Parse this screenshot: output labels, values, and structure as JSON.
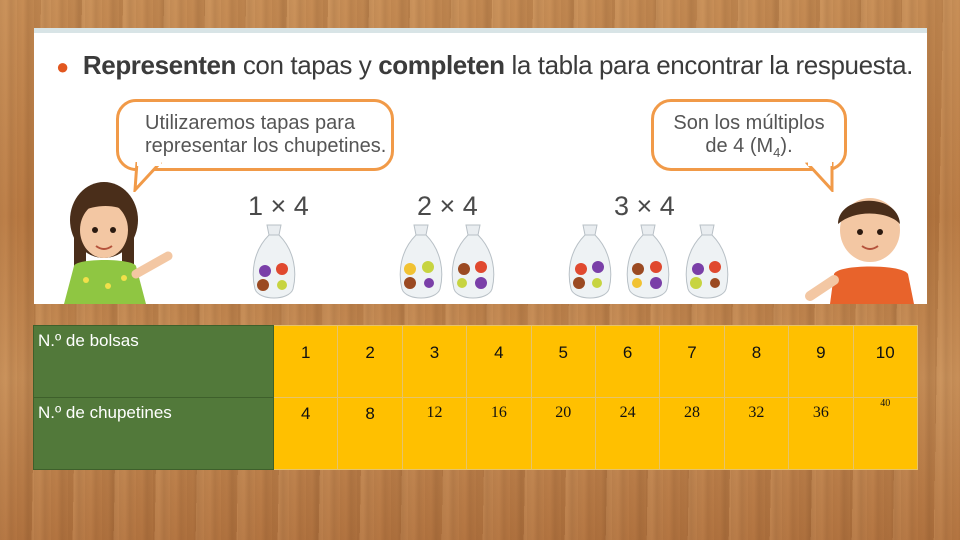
{
  "instruction": {
    "part1": "Representen",
    "part2": "con tapas y",
    "part3": "completen",
    "part4": "la tabla para encontrar la respuesta."
  },
  "bubbles": {
    "left_line1": "Utilizaremos tapas para",
    "left_line2": "representar los chupetines.",
    "right_line1": "Son los múltiplos",
    "right_line2": "de 4 (M",
    "right_sub": "4",
    "right_end": ")."
  },
  "multiplications": [
    "1 × 4",
    "2 × 4",
    "3 × 4"
  ],
  "table": {
    "row1_label": "N.º de bolsas",
    "row2_label": "N.º de chupetines",
    "bolsas": [
      "1",
      "2",
      "3",
      "4",
      "5",
      "6",
      "7",
      "8",
      "9",
      "10"
    ],
    "chupetines": [
      "4",
      "8",
      "12",
      "16",
      "20",
      "24",
      "28",
      "32",
      "36",
      "40"
    ]
  },
  "colors": {
    "label_bg": "#52793a",
    "cell_bg": "#ffc000",
    "bubble_border": "#f19a48"
  }
}
